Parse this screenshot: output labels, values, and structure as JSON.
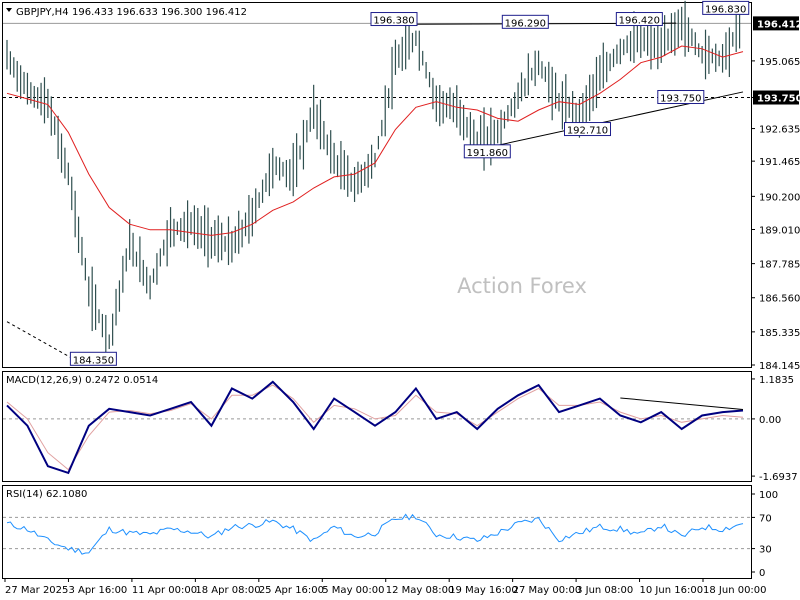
{
  "chart_header": {
    "symbol": "GBPJPY,H4",
    "ohlc": "196.433 196.633 196.300 196.412"
  },
  "watermark": "Action Forex",
  "colors": {
    "candles": "#2f4f4f",
    "ma": "#e02020",
    "macd": "#000080",
    "signal": "#e0a0a0",
    "rsi": "#1e90ff"
  },
  "chart_data": [
    {
      "type": "line",
      "title": "GBPJPY,H4",
      "ylim": [
        184.145,
        197.0
      ],
      "y_ticks": [
        "196.412",
        "195.065",
        "193.750",
        "192.635",
        "191.465",
        "190.200",
        "189.010",
        "187.785",
        "186.560",
        "185.335",
        "184.145"
      ],
      "x_ticks": [
        "27 Mar 2025",
        "3 Apr 16:00",
        "11 Apr 00:00",
        "18 Apr 08:00",
        "25 Apr 16:00",
        "5 May 00:00",
        "12 May 08:00",
        "19 May 16:00",
        "27 May 00:00",
        "3 Jun 08:00",
        "10 Jun 16:00",
        "18 Jun 00:00"
      ],
      "series": [
        {
          "x": [
            "27 Mar 2025",
            "",
            "",
            "",
            "3 Apr 16:00",
            "",
            "",
            "",
            "11 Apr 00:00",
            "",
            "",
            "18 Apr 08:00",
            "",
            "",
            "25 Apr 16:00",
            "",
            "",
            "5 May 00:00",
            "",
            "",
            "12 May 08:00",
            "",
            "",
            "19 May 16:00",
            "",
            "",
            "27 May 00:00",
            "",
            "",
            "3 Jun 08:00",
            "",
            "",
            "10 Jun 16:00",
            "",
            "",
            "18 Jun 00:00",
            ""
          ],
          "values": [
            195.2,
            194.0,
            193.5,
            191.0,
            186.8,
            185.0,
            188.5,
            187.0,
            189.0,
            189.2,
            188.7,
            188.4,
            189.5,
            191.3,
            191.0,
            193.3,
            191.5,
            190.6,
            191.5,
            195.0,
            195.9,
            193.6,
            193.3,
            192.2,
            192.5,
            193.8,
            195.0,
            193.6,
            193.1,
            194.5,
            195.5,
            195.9,
            195.6,
            196.4,
            195.3,
            195.2,
            196.412
          ]
        },
        {
          "name": "MA",
          "values": [
            193.9,
            193.7,
            193.5,
            192.5,
            191.0,
            189.8,
            189.2,
            189.0,
            189.0,
            188.9,
            188.8,
            188.9,
            189.2,
            189.7,
            190.0,
            190.5,
            190.9,
            191.0,
            191.4,
            192.6,
            193.4,
            193.6,
            193.4,
            193.3,
            193.0,
            192.9,
            193.3,
            193.6,
            193.5,
            193.9,
            194.4,
            195.0,
            195.2,
            195.6,
            195.5,
            195.2,
            195.4
          ]
        }
      ],
      "horizontal_lines": [
        {
          "value": 196.412,
          "label": "196.412"
        },
        {
          "value": 193.75,
          "label": "193.750"
        }
      ],
      "annotations": [
        "196.380",
        "196.290",
        "196.420",
        "196.830",
        "193.750",
        "192.710",
        "191.860",
        "184.350"
      ],
      "trendlines": [
        {
          "from": [
            "12 May 08:00",
            196.38
          ],
          "to": [
            "10 Jun 16:00",
            196.42
          ]
        },
        {
          "from": [
            "19 May 16:00",
            191.86
          ],
          "to": [
            "18 Jun 00:00",
            193.95
          ]
        },
        {
          "from": [
            "27 Mar 2025",
            185.7
          ],
          "to": [
            "3 Apr 16:00",
            184.35
          ]
        }
      ]
    },
    {
      "type": "line",
      "title": "MACD(12,26,9) 0.2472 0.0514",
      "y_ticks": [
        "1.1835",
        "0.00",
        "-1.6937"
      ],
      "ylim": [
        -1.75,
        1.3
      ],
      "series": [
        {
          "name": "MACD",
          "values": [
            0.4,
            -0.2,
            -1.4,
            -1.6,
            -0.2,
            0.3,
            0.2,
            0.1,
            0.3,
            0.5,
            -0.2,
            0.9,
            0.6,
            1.1,
            0.5,
            -0.3,
            0.6,
            0.2,
            -0.2,
            0.2,
            0.9,
            0.0,
            0.2,
            -0.3,
            0.3,
            0.7,
            1.0,
            0.2,
            0.4,
            0.6,
            0.1,
            -0.1,
            0.2,
            -0.3,
            0.1,
            0.2,
            0.25
          ]
        },
        {
          "name": "Signal",
          "values": [
            0.5,
            0.0,
            -1.0,
            -1.5,
            -0.5,
            0.2,
            0.25,
            0.15,
            0.25,
            0.45,
            0.0,
            0.7,
            0.7,
            1.0,
            0.6,
            -0.1,
            0.4,
            0.3,
            0.0,
            0.1,
            0.7,
            0.2,
            0.15,
            -0.2,
            0.2,
            0.6,
            0.9,
            0.4,
            0.4,
            0.5,
            0.2,
            0.0,
            0.1,
            -0.1,
            0.0,
            0.1,
            0.05
          ]
        }
      ]
    },
    {
      "type": "line",
      "title": "RSI(14) 62.1080",
      "y_ticks": [
        "100",
        "70",
        "30",
        "0"
      ],
      "ylim": [
        0,
        100
      ],
      "series": [
        {
          "name": "RSI",
          "values": [
            62,
            55,
            40,
            30,
            25,
            55,
            50,
            48,
            55,
            52,
            45,
            58,
            60,
            65,
            55,
            40,
            58,
            45,
            50,
            68,
            72,
            48,
            45,
            40,
            50,
            62,
            68,
            42,
            50,
            58,
            55,
            48,
            60,
            45,
            58,
            55,
            62.108
          ]
        }
      ]
    }
  ]
}
